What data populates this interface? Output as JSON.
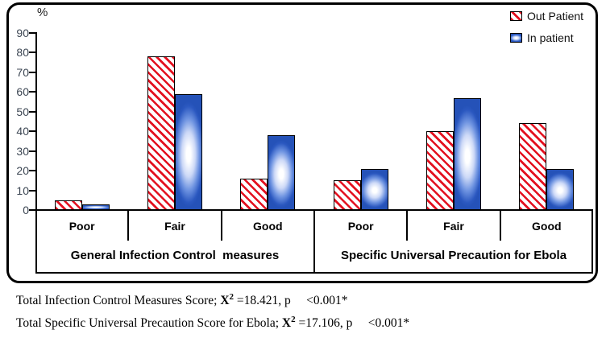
{
  "chart_data": {
    "type": "bar",
    "title": "",
    "ylabel": "%",
    "ylim": [
      0,
      90
    ],
    "yticks": [
      0,
      10,
      20,
      30,
      40,
      50,
      60,
      70,
      80,
      90
    ],
    "grid": false,
    "legend_position": "top-right-inside",
    "categories": [
      "Poor",
      "Fair",
      "Good",
      "Poor",
      "Fair",
      "Good"
    ],
    "groups": [
      {
        "label": "General Infection Control  measures",
        "categories": [
          "Poor",
          "Fair",
          "Good"
        ]
      },
      {
        "label": "Specific Universal Precaution for Ebola",
        "categories": [
          "Poor",
          "Fair",
          "Good"
        ]
      }
    ],
    "series": [
      {
        "name": "Out Patient",
        "pattern": "red-diagonal-hatch",
        "color": "#e3101f",
        "values": [
          5,
          78,
          16,
          15,
          40,
          44
        ]
      },
      {
        "name": "In patient",
        "pattern": "blue-gradient",
        "color": "#2b58c0",
        "values": [
          3,
          59,
          38,
          21,
          57,
          21
        ]
      }
    ]
  },
  "footnotes": [
    {
      "prefix": "Total Infection Control Measures Score; ",
      "stat": "X",
      "sup": "2",
      "rest": " =18.421, p     ",
      "pvalue": "<0.001*"
    },
    {
      "prefix": "Total Specific Universal Precaution Score for Ebola; ",
      "stat": "X",
      "sup": "2",
      "rest": " =17.106, p     ",
      "pvalue": "<0.001*"
    }
  ],
  "colors": {
    "hatch_red": "#e3101f",
    "bar_blue": "#2b58c0",
    "bar_border": "#000000",
    "axis": "#000000",
    "tick_label": "#3c4653",
    "text": "#000000"
  }
}
